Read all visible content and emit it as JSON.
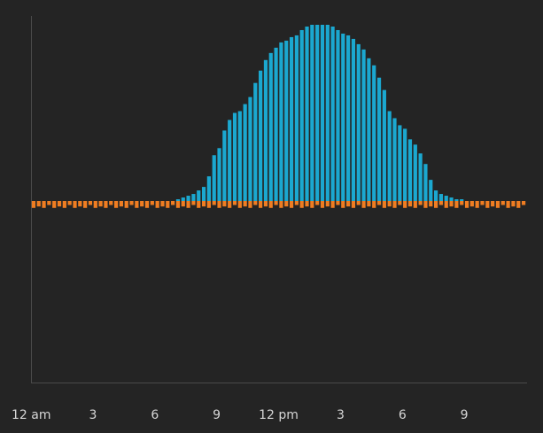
{
  "chart_data": {
    "type": "bar",
    "x_tick_labels": [
      "12 am",
      "3",
      "6",
      "9",
      "12 pm",
      "3",
      "6",
      "9"
    ],
    "x_range_hours": [
      0,
      24
    ],
    "interval_minutes": 15,
    "ylim": [
      -1,
      1
    ],
    "colors": {
      "production": "#1ba8d0",
      "consumption": "#ef7d22",
      "axis": "#4a4a4a",
      "background": "#242424"
    },
    "series": [
      {
        "color": "#1ba8d0",
        "values": [
          0,
          0,
          0,
          0,
          0,
          0,
          0,
          0,
          0,
          0,
          0,
          0,
          0,
          0,
          0,
          0,
          0,
          0,
          0,
          0,
          0,
          0,
          0,
          0,
          0,
          0,
          0,
          0,
          0.01,
          0.02,
          0.03,
          0.04,
          0.06,
          0.08,
          0.14,
          0.26,
          0.3,
          0.4,
          0.46,
          0.5,
          0.51,
          0.55,
          0.59,
          0.67,
          0.74,
          0.8,
          0.84,
          0.87,
          0.9,
          0.91,
          0.93,
          0.94,
          0.97,
          0.99,
          1.0,
          1.0,
          1.0,
          1.0,
          0.99,
          0.97,
          0.95,
          0.94,
          0.92,
          0.89,
          0.86,
          0.81,
          0.77,
          0.7,
          0.63,
          0.51,
          0.47,
          0.43,
          0.41,
          0.35,
          0.32,
          0.27,
          0.21,
          0.12,
          0.06,
          0.04,
          0.03,
          0.02,
          0.01,
          0.01,
          0,
          0,
          0,
          0,
          0,
          0,
          0,
          0,
          0,
          0,
          0,
          0
        ]
      },
      {
        "color": "#ef7d22",
        "values": [
          -0.038,
          -0.03,
          -0.038,
          -0.022,
          -0.038,
          -0.03,
          -0.038,
          -0.022,
          -0.038,
          -0.03,
          -0.038,
          -0.022,
          -0.038,
          -0.03,
          -0.038,
          -0.022,
          -0.038,
          -0.03,
          -0.038,
          -0.022,
          -0.038,
          -0.03,
          -0.038,
          -0.022,
          -0.038,
          -0.03,
          -0.038,
          -0.022,
          -0.038,
          -0.03,
          -0.038,
          -0.022,
          -0.038,
          -0.03,
          -0.038,
          -0.022,
          -0.038,
          -0.03,
          -0.038,
          -0.022,
          -0.038,
          -0.03,
          -0.038,
          -0.022,
          -0.038,
          -0.03,
          -0.038,
          -0.022,
          -0.038,
          -0.03,
          -0.038,
          -0.022,
          -0.038,
          -0.03,
          -0.038,
          -0.022,
          -0.038,
          -0.03,
          -0.038,
          -0.022,
          -0.038,
          -0.03,
          -0.038,
          -0.022,
          -0.038,
          -0.03,
          -0.038,
          -0.022,
          -0.038,
          -0.03,
          -0.038,
          -0.022,
          -0.038,
          -0.03,
          -0.038,
          -0.022,
          -0.038,
          -0.03,
          -0.038,
          -0.022,
          -0.038,
          -0.03,
          -0.038,
          -0.022,
          -0.038,
          -0.03,
          -0.038,
          -0.022,
          -0.038,
          -0.03,
          -0.038,
          -0.022,
          -0.038,
          -0.03,
          -0.038,
          -0.022
        ]
      }
    ]
  }
}
